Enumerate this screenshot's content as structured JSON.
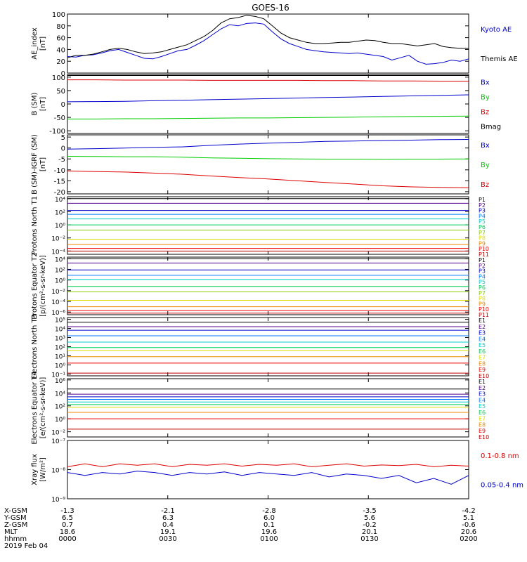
{
  "title": "GOES-16",
  "footer": {
    "rows": [
      {
        "label": "X-GSM",
        "values": [
          "-1.3",
          "-2.1",
          "-2.8",
          "-3.5",
          "-4.2"
        ]
      },
      {
        "label": "Y-GSM",
        "values": [
          "6.5",
          "6.3",
          "6.0",
          "5.6",
          "5.1"
        ]
      },
      {
        "label": "Z-GSM",
        "values": [
          "0.7",
          "0.4",
          "0.1",
          "-0.2",
          "-0.6"
        ]
      },
      {
        "label": "MLT",
        "values": [
          "18.6",
          "19.1",
          "19.6",
          "20.1",
          "20.6"
        ]
      },
      {
        "label": "hhmm",
        "values": [
          "0000",
          "0030",
          "0100",
          "0130",
          "0200"
        ]
      }
    ],
    "date": "2019 Feb 04"
  },
  "colors": {
    "axis": "#000000",
    "blue": "#0000cc",
    "green": "#00cc00",
    "red": "#dd0000",
    "black": "#000000"
  },
  "chart_data": [
    {
      "type": "line",
      "ylabel": "AE_index [nT]",
      "yticks": [
        "0",
        "20",
        "40",
        "60",
        "80",
        "100"
      ],
      "ylim": [
        0,
        100
      ],
      "x_range_hhmm": [
        "0000",
        "0200"
      ],
      "series": [
        {
          "name": "Kyoto AE",
          "color": "#0000cc",
          "values": [
            28,
            27,
            30,
            31,
            34,
            38,
            40,
            35,
            30,
            25,
            24,
            28,
            33,
            38,
            40,
            47,
            55,
            65,
            75,
            82,
            80,
            84,
            85,
            83,
            70,
            58,
            50,
            45,
            40,
            38,
            36,
            35,
            34,
            33,
            34,
            32,
            30,
            28,
            22,
            26,
            30,
            20,
            15,
            16,
            18,
            22,
            20,
            24
          ]
        },
        {
          "name": "Themis AE",
          "color": "#000000",
          "values": [
            26,
            30,
            30,
            32,
            36,
            40,
            42,
            40,
            36,
            33,
            34,
            36,
            40,
            44,
            48,
            55,
            62,
            72,
            85,
            92,
            94,
            98,
            96,
            92,
            80,
            68,
            60,
            56,
            52,
            50,
            50,
            51,
            52,
            52,
            54,
            56,
            55,
            52,
            50,
            50,
            48,
            46,
            48,
            50,
            45,
            43,
            42,
            42
          ]
        }
      ]
    },
    {
      "type": "line",
      "ylabel": "B (SM) [nT]",
      "yticks": [
        "-100",
        "-50",
        "0",
        "50",
        "100"
      ],
      "ylim": [
        -110,
        110
      ],
      "series": [
        {
          "name": "Bx",
          "color": "#0000cc",
          "values": [
            8,
            9,
            10,
            12,
            14,
            16,
            18,
            20,
            22,
            24,
            26,
            28,
            30,
            32,
            34
          ]
        },
        {
          "name": "By",
          "color": "#00cc00",
          "values": [
            -56,
            -56,
            -55,
            -55,
            -54,
            -53,
            -52,
            -52,
            -51,
            -50,
            -49,
            -48,
            -47,
            -46,
            -45
          ]
        },
        {
          "name": "Bz",
          "color": "#dd0000",
          "values": [
            90,
            90,
            89,
            89,
            89,
            88,
            88,
            88,
            88,
            87,
            87,
            86,
            86,
            85,
            85
          ]
        },
        {
          "name": "Bmag",
          "color": "#000000",
          "values": [
            106,
            106,
            106,
            106,
            106,
            106,
            106,
            106,
            106,
            106,
            106,
            106,
            106,
            106,
            106
          ]
        }
      ]
    },
    {
      "type": "line",
      "ylabel": "B (SM)-IGRF (SM) [nT]",
      "yticks": [
        "-20",
        "-15",
        "-10",
        "-5",
        "0",
        "5"
      ],
      "ylim": [
        -21,
        6
      ],
      "series": [
        {
          "name": "Bx",
          "color": "#0000cc",
          "values": [
            -0.5,
            -0.3,
            0,
            0.3,
            0.5,
            1.2,
            1.8,
            2.2,
            2.6,
            3,
            3.2,
            3.4,
            3.6,
            3.8,
            3.9
          ]
        },
        {
          "name": "By",
          "color": "#00cc00",
          "values": [
            -3.8,
            -3.9,
            -4,
            -4,
            -4.2,
            -4.5,
            -4.7,
            -4.9,
            -5,
            -5.1,
            -5.1,
            -5.2,
            -5.1,
            -5.1,
            -5
          ]
        },
        {
          "name": "Bz",
          "color": "#dd0000",
          "values": [
            -10.5,
            -10.8,
            -11,
            -11.5,
            -12,
            -12.8,
            -13.5,
            -14.2,
            -15,
            -15.8,
            -16.5,
            -17.3,
            -17.8,
            -18,
            -18.2
          ]
        }
      ]
    },
    {
      "type": "line",
      "ylabel": "Protons North T1",
      "scale": "log",
      "ytick_exponents": [
        4,
        2,
        0,
        -2,
        -4
      ],
      "ylim_exp": [
        -4.5,
        4.3
      ],
      "channels": [
        "P1",
        "P2",
        "P3",
        "P4",
        "P5",
        "P6",
        "P7",
        "P8",
        "P9",
        "P10",
        "P11"
      ],
      "channel_colors": [
        "#000000",
        "#550088",
        "#0000cc",
        "#0077ff",
        "#00cccc",
        "#00cc55",
        "#88cc00",
        "#dddd00",
        "#ee8800",
        "#ee0000",
        "#bb0000"
      ],
      "levels_exp": [
        4.0,
        3.3,
        2.2,
        1.6,
        0.9,
        0.0,
        -0.8,
        -2.2,
        -3.0,
        -3.6,
        -4.0
      ]
    },
    {
      "type": "line",
      "ylabel": "Protons Equator T2 [p/(cm²-s-sr-keV)]",
      "scale": "log",
      "ytick_exponents": [
        4,
        2,
        0,
        -2,
        -4,
        -6
      ],
      "ylim_exp": [
        -6.5,
        4.3
      ],
      "channels": [
        "P1",
        "P2",
        "P3",
        "P4",
        "P5",
        "P6",
        "P7",
        "P8",
        "P9",
        "P10",
        "P11"
      ],
      "channel_colors": [
        "#000000",
        "#550088",
        "#0000cc",
        "#0077ff",
        "#00cccc",
        "#00cc55",
        "#88cc00",
        "#dddd00",
        "#ee8800",
        "#ee0000",
        "#bb0000"
      ],
      "levels_exp": [
        4.0,
        3.2,
        1.9,
        0.9,
        0.1,
        -1.2,
        -2.2,
        -3.8,
        -5.0,
        -5.7,
        -6.2
      ]
    },
    {
      "type": "line",
      "ylabel": "Electrons North T3",
      "scale": "log",
      "ytick_exponents": [
        5,
        4,
        3,
        2,
        1,
        0,
        -1
      ],
      "ylim_exp": [
        -1.2,
        5.2
      ],
      "channels": [
        "E1",
        "E2",
        "E3",
        "E4",
        "E5",
        "E6",
        "E7",
        "E8",
        "E9",
        "E10"
      ],
      "channel_colors": [
        "#000000",
        "#550088",
        "#0000cc",
        "#0077ff",
        "#00cccc",
        "#00cc55",
        "#dddd00",
        "#ee8800",
        "#ee0000",
        "#bb0000"
      ],
      "levels_exp": [
        4.7,
        4.2,
        3.8,
        3.2,
        2.5,
        1.9,
        1.6,
        0.9,
        0.2,
        -0.9
      ]
    },
    {
      "type": "line",
      "ylabel": "Electrons Equator T4 [e/(cm²-s-sr-keV)]",
      "scale": "log",
      "ytick_exponents": [
        6,
        4,
        2,
        0,
        -2
      ],
      "ylim_exp": [
        -2.8,
        6.2
      ],
      "channels": [
        "E1",
        "E2",
        "E3",
        "E4",
        "E5",
        "E6",
        "E7",
        "E8",
        "E9",
        "E10"
      ],
      "channel_colors": [
        "#000000",
        "#550088",
        "#0000cc",
        "#0077ff",
        "#00cccc",
        "#00cc55",
        "#dddd00",
        "#ee8800",
        "#ee0000",
        "#bb0000"
      ],
      "levels_exp": [
        4.6,
        3.8,
        3.4,
        3.0,
        2.6,
        2.2,
        1.8,
        1.0,
        0.0,
        -1.6
      ]
    },
    {
      "type": "line",
      "ylabel": "Xray flux [W/m²]",
      "scale": "log",
      "ytick_exponents": [
        -7,
        -8,
        -9
      ],
      "ylim_exp": [
        -9,
        -7
      ],
      "series": [
        {
          "name": "0.1-0.8 nm",
          "color": "#dd0000",
          "values_exp": [
            -7.9,
            -7.8,
            -7.9,
            -7.8,
            -7.85,
            -7.8,
            -7.9,
            -7.82,
            -7.85,
            -7.8,
            -7.88,
            -7.82,
            -7.85,
            -7.8,
            -7.9,
            -7.85,
            -7.8,
            -7.88,
            -7.84,
            -7.86,
            -7.82,
            -7.9,
            -7.85,
            -7.88
          ]
        },
        {
          "name": "0.05-0.4 nm",
          "color": "#0000cc",
          "values_exp": [
            -8.1,
            -8.2,
            -8.1,
            -8.15,
            -8.05,
            -8.1,
            -8.2,
            -8.1,
            -8.15,
            -8.08,
            -8.2,
            -8.1,
            -8.15,
            -8.2,
            -8.1,
            -8.25,
            -8.15,
            -8.2,
            -8.3,
            -8.2,
            -8.45,
            -8.3,
            -8.5,
            -8.2
          ]
        }
      ]
    }
  ]
}
